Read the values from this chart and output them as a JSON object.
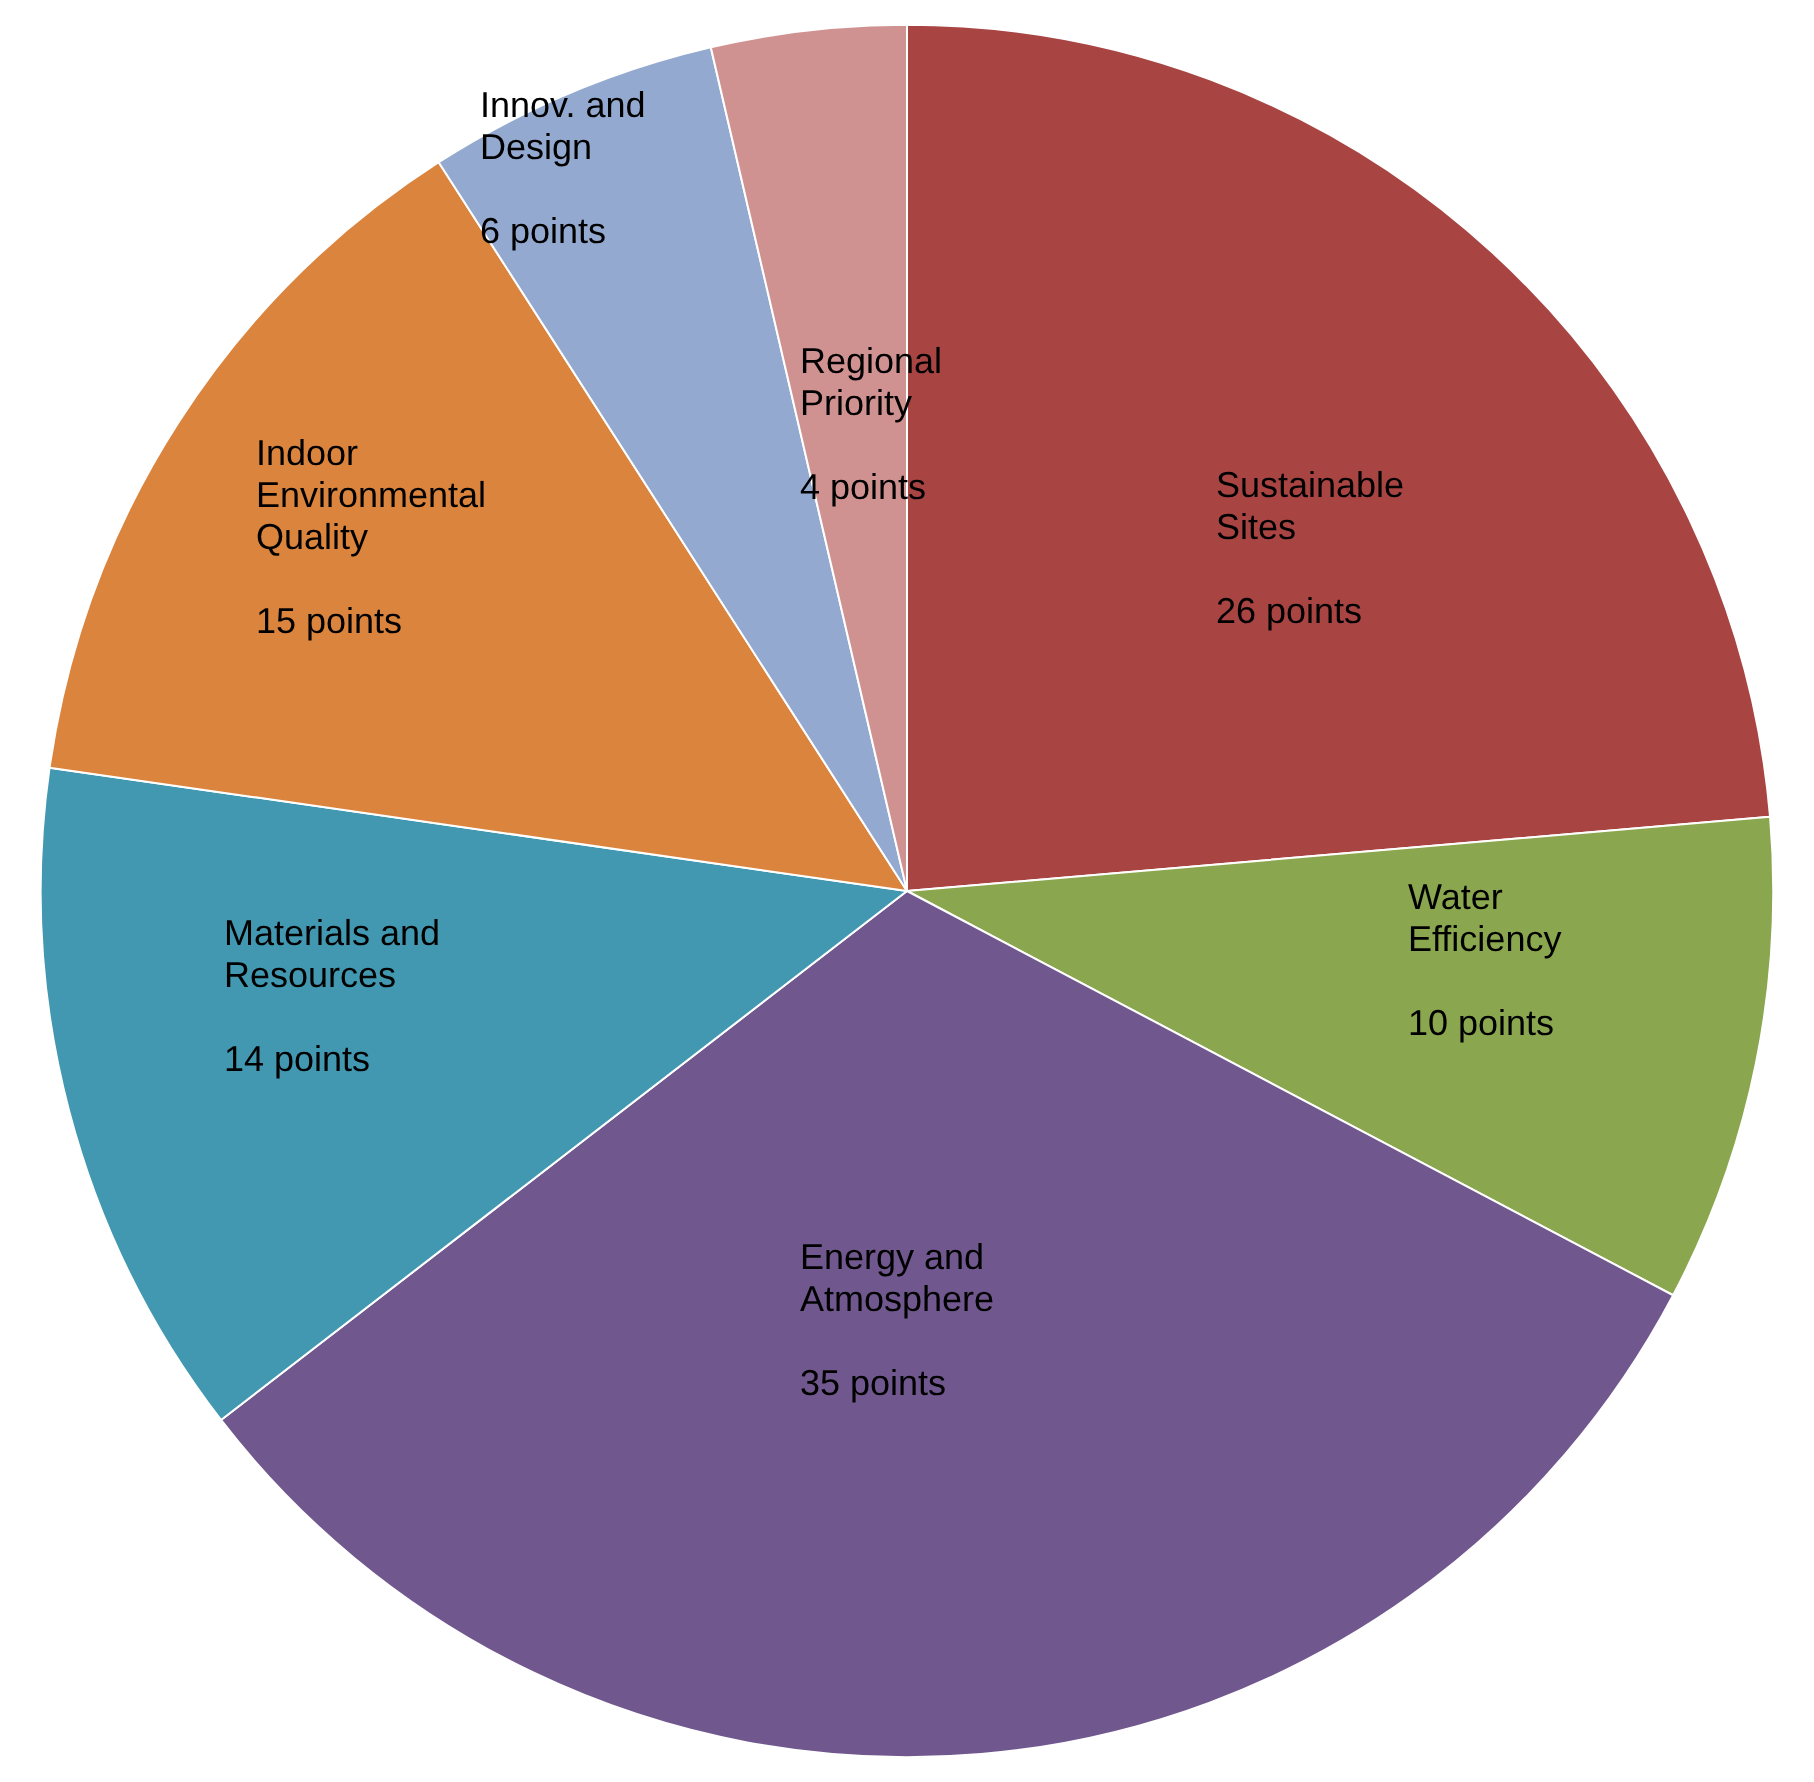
{
  "chart_data": {
    "type": "pie",
    "categories": [
      "Sustainable Sites",
      "Water Efficiency",
      "Energy and Atmosphere",
      "Materials and Resources",
      "Indoor Environmental Quality",
      "Innov. and Design",
      "Regional Priority"
    ],
    "values": [
      26,
      10,
      35,
      14,
      15,
      6,
      4
    ],
    "colors": [
      "#a84543",
      "#8aa64e",
      "#70588f",
      "#4198b0",
      "#db843d",
      "#93a9cf",
      "#d09291"
    ],
    "value_labels": [
      "26 points",
      "10 points",
      "35 points",
      "14 points",
      "15 points",
      "6 points",
      "4 points"
    ],
    "legend": false
  }
}
